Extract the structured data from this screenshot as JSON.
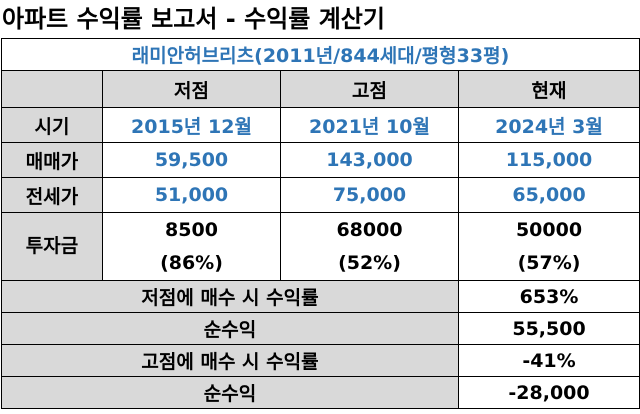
{
  "title": "아파트 수익률 보고서 - 수익률 계산기",
  "apartment": "래미안허브리츠(2011년/844세대/평형33평)",
  "columns": [
    "저점",
    "고점",
    "현재"
  ],
  "rows": {
    "period": {
      "label": "시기",
      "values": [
        "2015년 12월",
        "2021년 10월",
        "2024년 3월"
      ]
    },
    "sale_price": {
      "label": "매매가",
      "values": [
        "59,500",
        "143,000",
        "115,000"
      ]
    },
    "jeonse": {
      "label": "전세가",
      "values": [
        "51,000",
        "75,000",
        "65,000"
      ]
    },
    "investment": {
      "label": "투자금",
      "values": [
        {
          "amount": "8500",
          "ratio": "(86%)"
        },
        {
          "amount": "68000",
          "ratio": "(52%)"
        },
        {
          "amount": "50000",
          "ratio": "(57%)"
        }
      ]
    }
  },
  "summary": [
    {
      "label": "저점에 매수 시 수익률",
      "value": "653%"
    },
    {
      "label": "순수익",
      "value": "55,500"
    },
    {
      "label": "고점에 매수 시 수익률",
      "value": "-41%"
    },
    {
      "label": "순수익",
      "value": "-28,000"
    }
  ]
}
